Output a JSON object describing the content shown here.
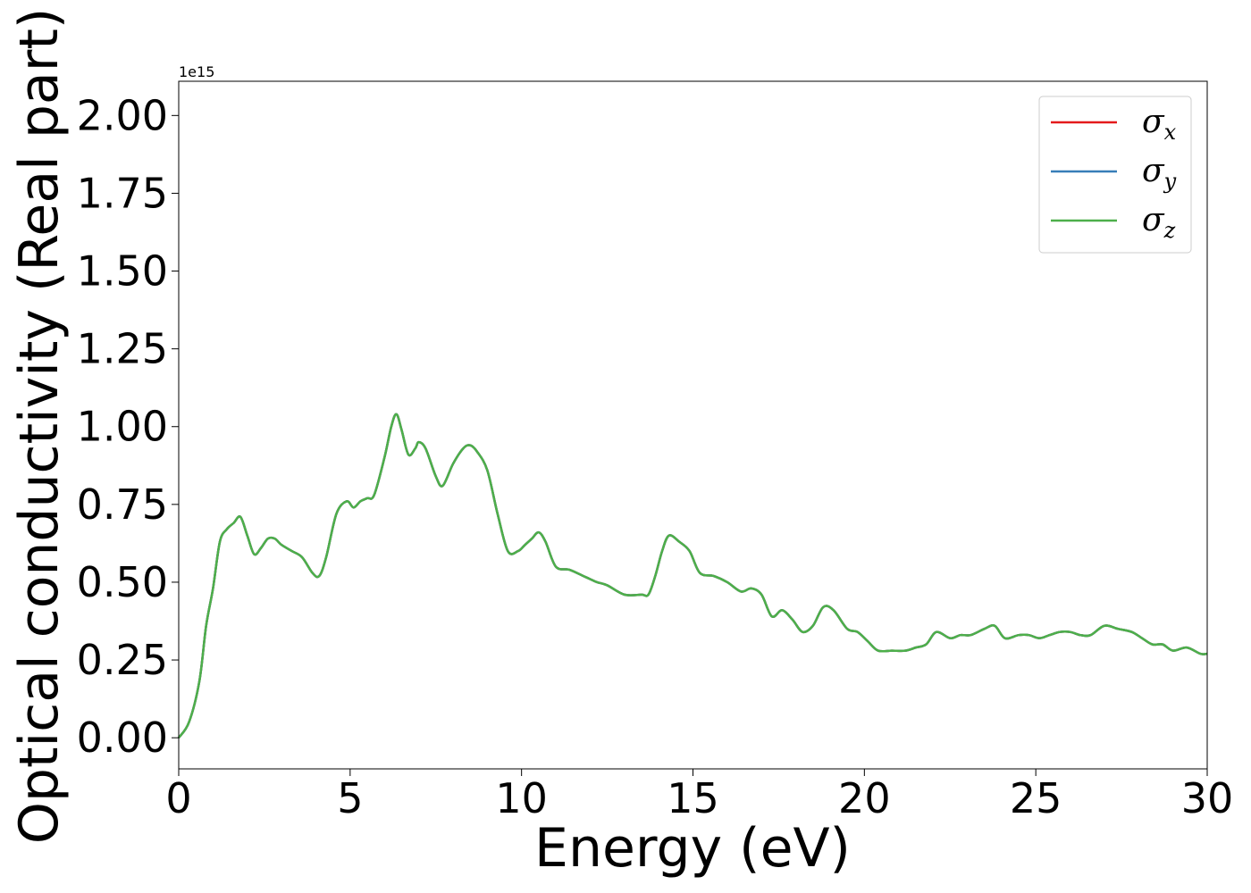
{
  "chart_data": {
    "type": "line",
    "xlabel": "Energy (eV)",
    "ylabel": "Optical conductivity (Real part)",
    "y_offset_text": "1e15",
    "xlim": [
      0,
      30
    ],
    "ylim": [
      -0.1,
      2.11
    ],
    "xticks": [
      "0",
      "5",
      "10",
      "15",
      "20",
      "25",
      "30"
    ],
    "xtick_values": [
      0,
      5,
      10,
      15,
      20,
      25,
      30
    ],
    "yticks": [
      "0.00",
      "0.25",
      "0.50",
      "0.75",
      "1.00",
      "1.25",
      "1.50",
      "1.75",
      "2.00"
    ],
    "ytick_values": [
      0,
      0.25,
      0.5,
      0.75,
      1.0,
      1.25,
      1.5,
      1.75,
      2.0
    ],
    "grid": false,
    "legend_position": "top-right",
    "x": [
      0,
      0.3,
      0.6,
      0.8,
      1.0,
      1.2,
      1.4,
      1.6,
      1.8,
      2.0,
      2.2,
      2.4,
      2.6,
      2.8,
      3.0,
      3.3,
      3.6,
      3.9,
      4.1,
      4.3,
      4.6,
      4.9,
      5.1,
      5.3,
      5.5,
      5.7,
      6.0,
      6.2,
      6.35,
      6.5,
      6.7,
      6.9,
      7.0,
      7.2,
      7.5,
      7.7,
      8.0,
      8.3,
      8.5,
      8.7,
      9.0,
      9.3,
      9.6,
      9.9,
      10.1,
      10.3,
      10.5,
      10.7,
      11.0,
      11.4,
      11.8,
      12.0,
      12.2,
      12.5,
      13.0,
      13.5,
      13.7,
      13.9,
      14.1,
      14.3,
      14.6,
      14.9,
      15.2,
      15.6,
      16.0,
      16.4,
      16.7,
      17.0,
      17.3,
      17.6,
      17.9,
      18.2,
      18.5,
      18.8,
      19.1,
      19.5,
      19.8,
      20.1,
      20.4,
      20.8,
      21.2,
      21.5,
      21.8,
      22.1,
      22.5,
      22.8,
      23.1,
      23.5,
      23.8,
      24.1,
      24.5,
      24.8,
      25.1,
      25.4,
      25.7,
      26.0,
      26.3,
      26.6,
      27.0,
      27.4,
      27.8,
      28.1,
      28.4,
      28.7,
      29.0,
      29.4,
      29.8,
      30.0
    ],
    "series": [
      {
        "name": "σ_x",
        "label_main": "σ",
        "label_sub": "x",
        "color": "#e41a1c",
        "values": [
          0.0,
          0.05,
          0.18,
          0.36,
          0.48,
          0.63,
          0.67,
          0.69,
          0.71,
          0.65,
          0.59,
          0.61,
          0.64,
          0.64,
          0.62,
          0.6,
          0.58,
          0.53,
          0.52,
          0.58,
          0.72,
          0.76,
          0.74,
          0.76,
          0.77,
          0.78,
          0.9,
          1.0,
          1.04,
          0.99,
          0.91,
          0.93,
          0.95,
          0.93,
          0.84,
          0.81,
          0.88,
          0.93,
          0.94,
          0.92,
          0.86,
          0.72,
          0.6,
          0.6,
          0.62,
          0.64,
          0.66,
          0.63,
          0.55,
          0.54,
          0.52,
          0.51,
          0.5,
          0.49,
          0.46,
          0.46,
          0.46,
          0.52,
          0.6,
          0.65,
          0.63,
          0.6,
          0.53,
          0.52,
          0.5,
          0.47,
          0.48,
          0.46,
          0.39,
          0.41,
          0.38,
          0.34,
          0.36,
          0.42,
          0.41,
          0.35,
          0.34,
          0.31,
          0.28,
          0.28,
          0.28,
          0.29,
          0.3,
          0.34,
          0.32,
          0.33,
          0.33,
          0.35,
          0.36,
          0.32,
          0.33,
          0.33,
          0.32,
          0.33,
          0.34,
          0.34,
          0.33,
          0.33,
          0.36,
          0.35,
          0.34,
          0.32,
          0.3,
          0.3,
          0.28,
          0.29,
          0.27,
          0.27
        ]
      },
      {
        "name": "σ_y",
        "label_main": "σ",
        "label_sub": "y",
        "color": "#377eb8",
        "values": [
          0.0,
          0.05,
          0.18,
          0.36,
          0.48,
          0.63,
          0.67,
          0.69,
          0.71,
          0.65,
          0.59,
          0.61,
          0.64,
          0.64,
          0.62,
          0.6,
          0.58,
          0.53,
          0.52,
          0.58,
          0.72,
          0.76,
          0.74,
          0.76,
          0.77,
          0.78,
          0.9,
          1.0,
          1.04,
          0.99,
          0.91,
          0.93,
          0.95,
          0.93,
          0.84,
          0.81,
          0.88,
          0.93,
          0.94,
          0.92,
          0.86,
          0.72,
          0.6,
          0.6,
          0.62,
          0.64,
          0.66,
          0.63,
          0.55,
          0.54,
          0.52,
          0.51,
          0.5,
          0.49,
          0.46,
          0.46,
          0.46,
          0.52,
          0.6,
          0.65,
          0.63,
          0.6,
          0.53,
          0.52,
          0.5,
          0.47,
          0.48,
          0.46,
          0.39,
          0.41,
          0.38,
          0.34,
          0.36,
          0.42,
          0.41,
          0.35,
          0.34,
          0.31,
          0.28,
          0.28,
          0.28,
          0.29,
          0.3,
          0.34,
          0.32,
          0.33,
          0.33,
          0.35,
          0.36,
          0.32,
          0.33,
          0.33,
          0.32,
          0.33,
          0.34,
          0.34,
          0.33,
          0.33,
          0.36,
          0.35,
          0.34,
          0.32,
          0.3,
          0.3,
          0.28,
          0.29,
          0.27,
          0.27
        ]
      },
      {
        "name": "σ_z",
        "label_main": "σ",
        "label_sub": "z",
        "color": "#4daf4a",
        "values": [
          0.0,
          0.05,
          0.18,
          0.36,
          0.48,
          0.63,
          0.67,
          0.69,
          0.71,
          0.65,
          0.59,
          0.61,
          0.64,
          0.64,
          0.62,
          0.6,
          0.58,
          0.53,
          0.52,
          0.58,
          0.72,
          0.76,
          0.74,
          0.76,
          0.77,
          0.78,
          0.9,
          1.0,
          1.04,
          0.99,
          0.91,
          0.93,
          0.95,
          0.93,
          0.84,
          0.81,
          0.88,
          0.93,
          0.94,
          0.92,
          0.86,
          0.72,
          0.6,
          0.6,
          0.62,
          0.64,
          0.66,
          0.63,
          0.55,
          0.54,
          0.52,
          0.51,
          0.5,
          0.49,
          0.46,
          0.46,
          0.46,
          0.52,
          0.6,
          0.65,
          0.63,
          0.6,
          0.53,
          0.52,
          0.5,
          0.47,
          0.48,
          0.46,
          0.39,
          0.41,
          0.38,
          0.34,
          0.36,
          0.42,
          0.41,
          0.35,
          0.34,
          0.31,
          0.28,
          0.28,
          0.28,
          0.29,
          0.3,
          0.34,
          0.32,
          0.33,
          0.33,
          0.35,
          0.36,
          0.32,
          0.33,
          0.33,
          0.32,
          0.33,
          0.34,
          0.34,
          0.33,
          0.33,
          0.36,
          0.35,
          0.34,
          0.32,
          0.3,
          0.3,
          0.28,
          0.29,
          0.27,
          0.27
        ]
      }
    ]
  }
}
